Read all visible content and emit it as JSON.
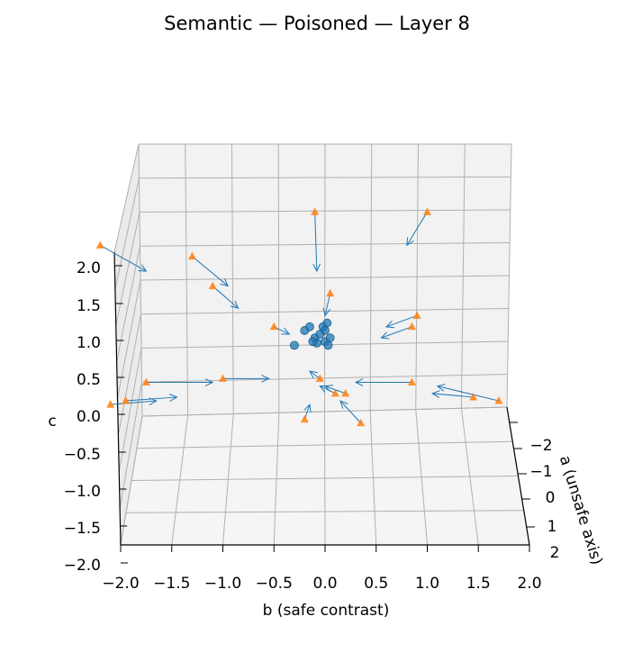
{
  "chart_data": {
    "type": "scatter",
    "projection": "3d",
    "title": "Semantic — Poisoned — Layer 8",
    "xlabel": "b (safe contrast)",
    "ylabel": "a (unsafe axis)",
    "zlabel": "c",
    "xlim": [
      -2.0,
      2.0
    ],
    "ylim": [
      -2.5,
      2.0
    ],
    "zlim": [
      -2.0,
      2.3
    ],
    "x_ticks": [
      "−2.0",
      "−1.5",
      "−1.0",
      "−0.5",
      "0.0",
      "0.5",
      "1.0",
      "1.5",
      "2.0"
    ],
    "y_ticks": [
      "−2",
      "−1",
      "0",
      "1",
      "2"
    ],
    "z_ticks": [
      "−2.0",
      "−1.5",
      "−1.0",
      "−0.5",
      "0.0",
      "0.5",
      "1.0",
      "1.5",
      "2.0"
    ],
    "colors": {
      "poisoned": "#ff7f0e",
      "clean": "#1f77b4",
      "arrow": "#1f77b4",
      "grid": "#b0b0b0",
      "pane": "#f2f2f2"
    },
    "poisoned_points": [
      {
        "b": -2.2,
        "a": 1.0,
        "c": 2.3
      },
      {
        "b": -1.3,
        "a": 1.0,
        "c": 2.15
      },
      {
        "b": -1.1,
        "a": 1.0,
        "c": 1.75
      },
      {
        "b": -0.5,
        "a": 1.0,
        "c": 1.2
      },
      {
        "b": -0.1,
        "a": 1.0,
        "c": 2.75
      },
      {
        "b": 0.05,
        "a": 1.0,
        "c": 1.65
      },
      {
        "b": 1.0,
        "a": 1.0,
        "c": 2.75
      },
      {
        "b": 0.9,
        "a": 1.0,
        "c": 1.35
      },
      {
        "b": 0.85,
        "a": 1.0,
        "c": 1.2
      },
      {
        "b": -1.75,
        "a": 1.0,
        "c": 0.45
      },
      {
        "b": -1.0,
        "a": 1.0,
        "c": 0.5
      },
      {
        "b": 0.85,
        "a": 1.0,
        "c": 0.45
      },
      {
        "b": -1.95,
        "a": 1.0,
        "c": 0.2
      },
      {
        "b": -2.1,
        "a": 1.0,
        "c": 0.15
      },
      {
        "b": 0.2,
        "a": 1.0,
        "c": 0.3
      },
      {
        "b": 0.1,
        "a": 1.0,
        "c": 0.3
      },
      {
        "b": -0.05,
        "a": 1.0,
        "c": 0.5
      },
      {
        "b": 1.45,
        "a": 1.0,
        "c": 0.25
      },
      {
        "b": 1.7,
        "a": 1.0,
        "c": 0.2
      },
      {
        "b": 0.35,
        "a": 1.0,
        "c": -0.1
      },
      {
        "b": -0.2,
        "a": 1.0,
        "c": -0.05
      }
    ],
    "clean_points": [
      {
        "b": -0.3,
        "a": 1.0,
        "c": 0.95
      },
      {
        "b": -0.2,
        "a": 1.0,
        "c": 1.15
      },
      {
        "b": -0.15,
        "a": 1.0,
        "c": 1.2
      },
      {
        "b": -0.1,
        "a": 1.0,
        "c": 1.05
      },
      {
        "b": -0.05,
        "a": 1.0,
        "c": 1.1
      },
      {
        "b": -0.02,
        "a": 1.0,
        "c": 1.2
      },
      {
        "b": 0.0,
        "a": 1.0,
        "c": 1.0
      },
      {
        "b": 0.02,
        "a": 1.0,
        "c": 1.25
      },
      {
        "b": 0.05,
        "a": 1.0,
        "c": 1.05
      },
      {
        "b": 0.03,
        "a": 1.0,
        "c": 0.95
      },
      {
        "b": -0.08,
        "a": 1.0,
        "c": 0.98
      },
      {
        "b": 0.0,
        "a": 1.0,
        "c": 1.15
      },
      {
        "b": -0.12,
        "a": 1.0,
        "c": 1.0
      }
    ],
    "arrows": [
      {
        "from": {
          "b": -2.2,
          "a": 1.0,
          "c": 2.3
        },
        "to": {
          "b": -1.75,
          "a": 1.0,
          "c": 1.95
        }
      },
      {
        "from": {
          "b": -1.3,
          "a": 1.0,
          "c": 2.15
        },
        "to": {
          "b": -0.95,
          "a": 1.0,
          "c": 1.75
        }
      },
      {
        "from": {
          "b": -1.1,
          "a": 1.0,
          "c": 1.75
        },
        "to": {
          "b": -0.85,
          "a": 1.0,
          "c": 1.45
        }
      },
      {
        "from": {
          "b": -0.5,
          "a": 1.0,
          "c": 1.2
        },
        "to": {
          "b": -0.35,
          "a": 1.0,
          "c": 1.1
        }
      },
      {
        "from": {
          "b": -0.1,
          "a": 1.0,
          "c": 2.75
        },
        "to": {
          "b": -0.08,
          "a": 1.0,
          "c": 1.95
        }
      },
      {
        "from": {
          "b": 0.05,
          "a": 1.0,
          "c": 1.65
        },
        "to": {
          "b": 0.0,
          "a": 1.0,
          "c": 1.35
        }
      },
      {
        "from": {
          "b": 1.0,
          "a": 1.0,
          "c": 2.75
        },
        "to": {
          "b": 0.8,
          "a": 1.0,
          "c": 2.3
        }
      },
      {
        "from": {
          "b": 0.9,
          "a": 1.0,
          "c": 1.35
        },
        "to": {
          "b": 0.6,
          "a": 1.0,
          "c": 1.2
        }
      },
      {
        "from": {
          "b": 0.85,
          "a": 1.0,
          "c": 1.2
        },
        "to": {
          "b": 0.55,
          "a": 1.0,
          "c": 1.05
        }
      },
      {
        "from": {
          "b": -1.75,
          "a": 1.0,
          "c": 0.45
        },
        "to": {
          "b": -1.1,
          "a": 1.0,
          "c": 0.45
        }
      },
      {
        "from": {
          "b": -1.0,
          "a": 1.0,
          "c": 0.5
        },
        "to": {
          "b": -0.55,
          "a": 1.0,
          "c": 0.5
        }
      },
      {
        "from": {
          "b": 0.85,
          "a": 1.0,
          "c": 0.45
        },
        "to": {
          "b": 0.3,
          "a": 1.0,
          "c": 0.45
        }
      },
      {
        "from": {
          "b": -1.95,
          "a": 1.0,
          "c": 0.2
        },
        "to": {
          "b": -1.45,
          "a": 1.0,
          "c": 0.25
        }
      },
      {
        "from": {
          "b": -2.1,
          "a": 1.0,
          "c": 0.15
        },
        "to": {
          "b": -1.65,
          "a": 1.0,
          "c": 0.2
        }
      },
      {
        "from": {
          "b": 0.2,
          "a": 1.0,
          "c": 0.3
        },
        "to": {
          "b": 0.0,
          "a": 1.0,
          "c": 0.4
        }
      },
      {
        "from": {
          "b": 0.1,
          "a": 1.0,
          "c": 0.3
        },
        "to": {
          "b": -0.05,
          "a": 1.0,
          "c": 0.4
        }
      },
      {
        "from": {
          "b": -0.05,
          "a": 1.0,
          "c": 0.5
        },
        "to": {
          "b": -0.15,
          "a": 1.0,
          "c": 0.6
        }
      },
      {
        "from": {
          "b": 1.45,
          "a": 1.0,
          "c": 0.25
        },
        "to": {
          "b": 1.05,
          "a": 1.0,
          "c": 0.3
        }
      },
      {
        "from": {
          "b": 1.7,
          "a": 1.0,
          "c": 0.2
        },
        "to": {
          "b": 1.1,
          "a": 1.0,
          "c": 0.4
        }
      },
      {
        "from": {
          "b": 0.35,
          "a": 1.0,
          "c": -0.1
        },
        "to": {
          "b": 0.15,
          "a": 1.0,
          "c": 0.2
        }
      },
      {
        "from": {
          "b": -0.2,
          "a": 1.0,
          "c": -0.05
        },
        "to": {
          "b": -0.15,
          "a": 1.0,
          "c": 0.15
        }
      }
    ]
  }
}
